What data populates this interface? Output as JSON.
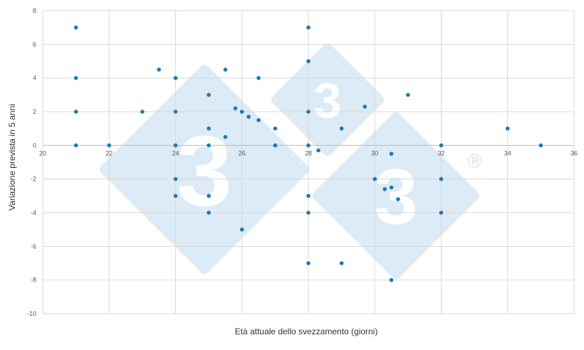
{
  "chart_data": {
    "type": "scatter",
    "title": "",
    "xlabel": "Età attuale dello svezzamento (giorni)",
    "ylabel": "Variazione prevista in 5 anni",
    "xlim": [
      20,
      36
    ],
    "ylim": [
      -10,
      8
    ],
    "x_ticks": [
      20,
      22,
      24,
      26,
      28,
      30,
      32,
      34,
      36
    ],
    "y_ticks": [
      8,
      6,
      4,
      2,
      0,
      -2,
      -4,
      -6,
      -8,
      -10
    ],
    "grid": true,
    "legend": "none",
    "series": [
      {
        "color": "#1f78b4",
        "points": [
          [
            21,
            7
          ],
          [
            21,
            4
          ],
          [
            21,
            2
          ],
          [
            21,
            0
          ],
          [
            22,
            0
          ],
          [
            23,
            2
          ],
          [
            23.5,
            4.5
          ],
          [
            24,
            4
          ],
          [
            24,
            2
          ],
          [
            24,
            0
          ],
          [
            24,
            -2
          ],
          [
            24,
            -3
          ],
          [
            25,
            3
          ],
          [
            25,
            1
          ],
          [
            25,
            0
          ],
          [
            25,
            -3
          ],
          [
            25,
            -4
          ],
          [
            25.5,
            4.5
          ],
          [
            25.5,
            0.5
          ],
          [
            25.8,
            2.2
          ],
          [
            26,
            2
          ],
          [
            26,
            -5
          ],
          [
            26.2,
            1.7
          ],
          [
            26.5,
            4
          ],
          [
            26.5,
            1.5
          ],
          [
            27,
            1
          ],
          [
            27,
            0
          ],
          [
            28,
            7
          ],
          [
            28,
            5
          ],
          [
            28,
            2
          ],
          [
            28,
            0
          ],
          [
            28,
            -3
          ],
          [
            28,
            -4
          ],
          [
            28,
            -7
          ],
          [
            28.3,
            -0.3
          ],
          [
            29,
            1
          ],
          [
            29,
            -7
          ],
          [
            29.7,
            2.3
          ],
          [
            30,
            -2
          ],
          [
            30.3,
            -2.6
          ],
          [
            30.5,
            -0.5
          ],
          [
            30.5,
            -2.5
          ],
          [
            30.5,
            -8
          ],
          [
            30.7,
            -3.2
          ],
          [
            31,
            3
          ],
          [
            32,
            0
          ],
          [
            32,
            -2
          ],
          [
            32,
            -4
          ],
          [
            34,
            1
          ],
          [
            35,
            0
          ]
        ]
      }
    ]
  },
  "watermark": {
    "digit": "3",
    "registered_mark": "®",
    "color": "#dcebf5"
  }
}
